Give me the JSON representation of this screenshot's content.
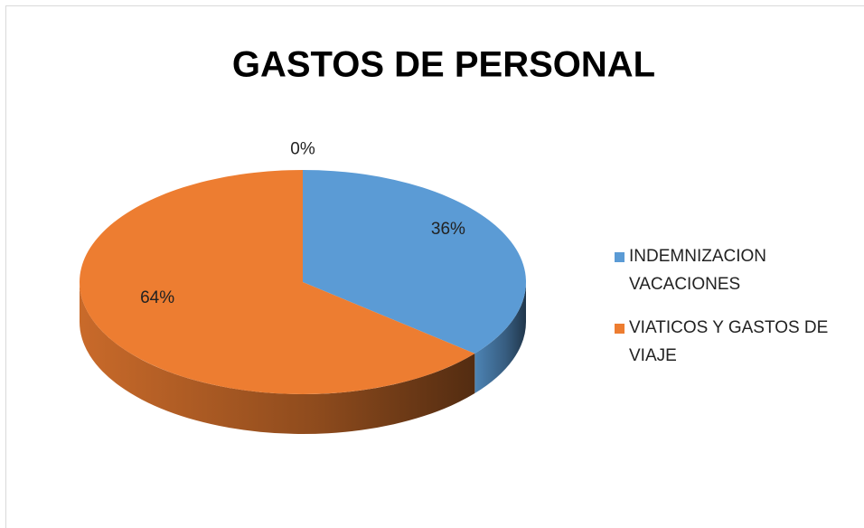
{
  "chart_data": {
    "type": "pie",
    "title": "GASTOS DE PERSONAL",
    "categories": [
      null,
      "INDEMNIZACION VACACIONES",
      "VIATICOS Y GASTOS DE VIAJE"
    ],
    "values": [
      0,
      36,
      64
    ],
    "value_labels": [
      "0%",
      "36%",
      "64%"
    ],
    "colors": [
      null,
      "#5b9bd5",
      "#ed7d31"
    ],
    "legend": "right"
  }
}
